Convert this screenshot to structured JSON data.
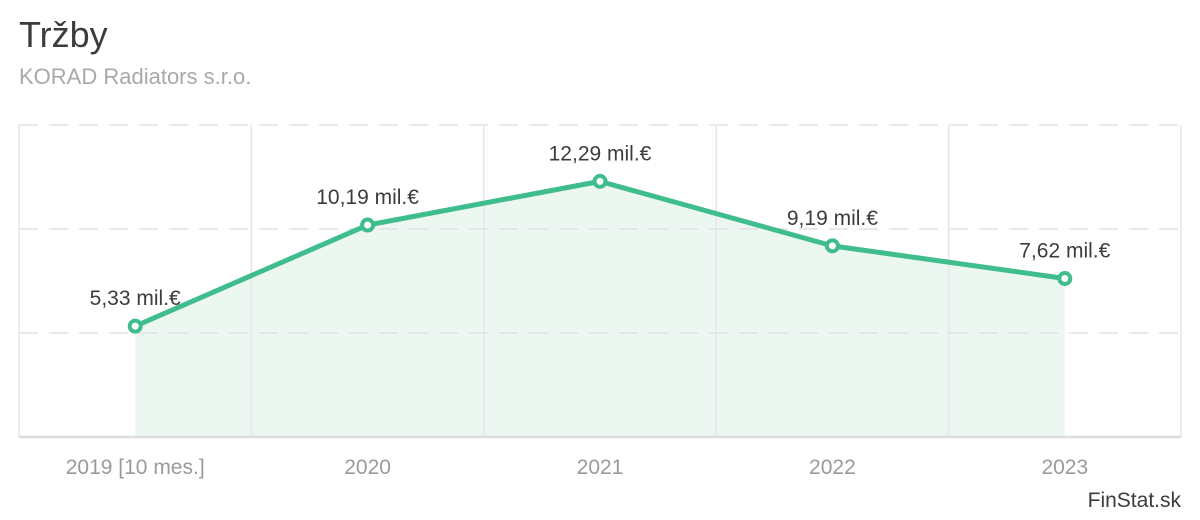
{
  "header": {
    "title": "Tržby",
    "subtitle": "KORAD Radiators s.r.o."
  },
  "footer": {
    "watermark": "FinStat.sk"
  },
  "chart_data": {
    "type": "area",
    "title": "Tržby",
    "subtitle": "KORAD Radiators s.r.o.",
    "categories": [
      "2019 [10 mes.]",
      "2020",
      "2021",
      "2022",
      "2023"
    ],
    "values": [
      5.33,
      10.19,
      12.29,
      9.19,
      7.62
    ],
    "point_labels": [
      "5,33 mil.€",
      "10,19 mil.€",
      "12,29 mil.€",
      "9,19 mil.€",
      "7,62 mil.€"
    ],
    "unit": "mil.€",
    "xlabel": "",
    "ylabel": "",
    "ylim": [
      0,
      15
    ],
    "y_gridline_step": 5,
    "grid": true,
    "legend": false,
    "colors": {
      "line": "#40bd8c",
      "marker_fill": "#ffffff",
      "area_fill": "#ecf7f2",
      "gridline": "#e6e6e6",
      "gridline_dashed": "#e2e2e2",
      "axis_line": "#dcdcdc",
      "value_label_text": "#3c3c3c",
      "axis_text": "#9a9a9a"
    }
  }
}
